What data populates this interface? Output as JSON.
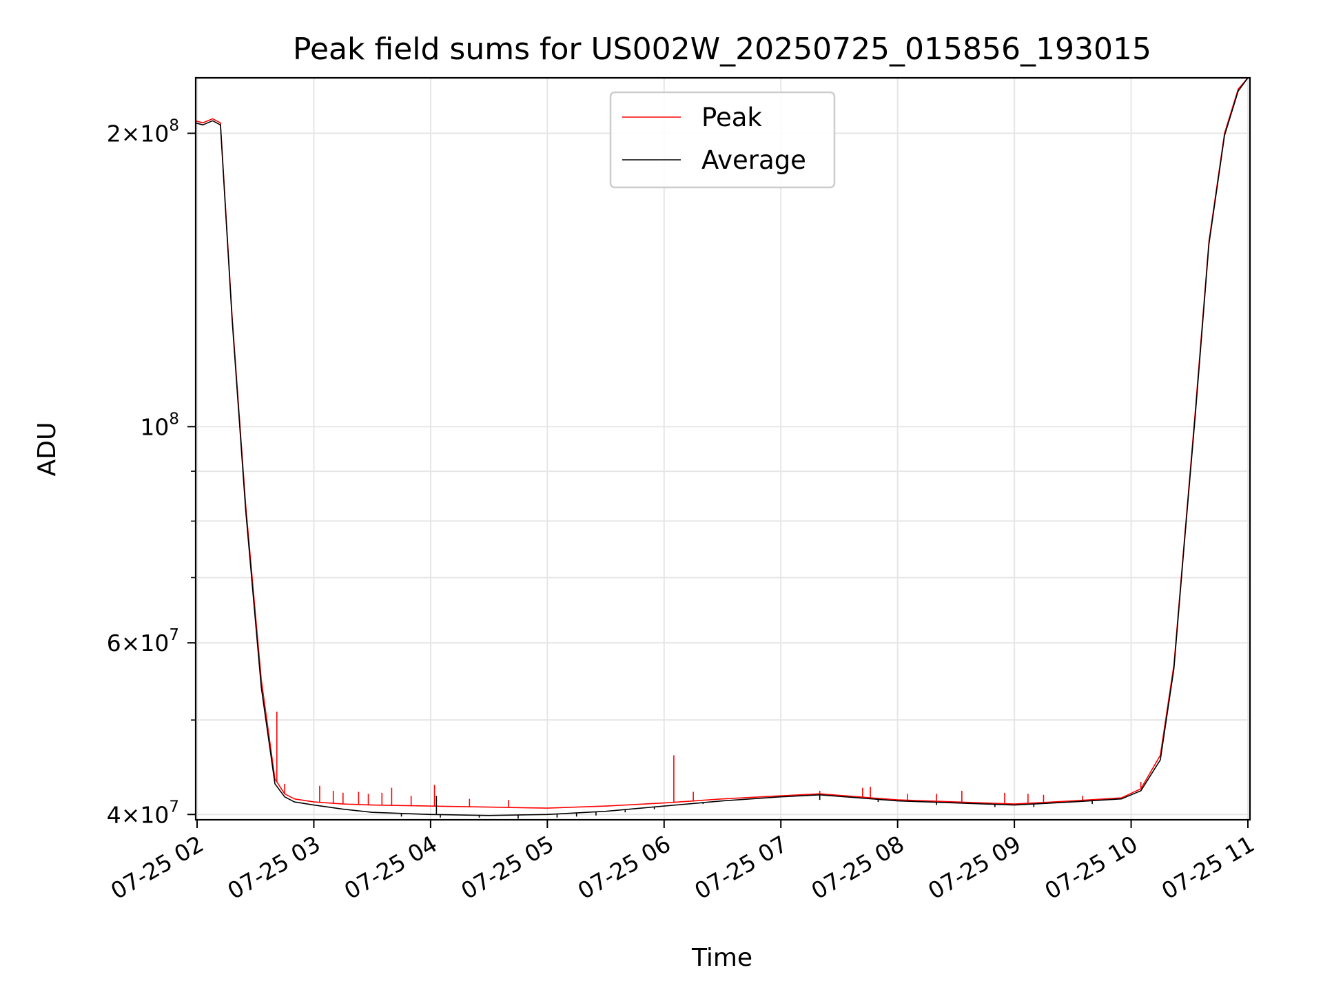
{
  "chart_data": {
    "type": "line",
    "title": "Peak field sums for US002W_20250725_015856_193015",
    "xlabel": "Time",
    "ylabel": "ADU",
    "yscale": "log",
    "ylim": [
      39500000,
      228000000
    ],
    "xlim": [
      "2025-07-25T02:00:00",
      "2025-07-25T11:00:00"
    ],
    "x_ticks": [
      {
        "value": "2025-07-25T02:00:00",
        "label": "07-25 02"
      },
      {
        "value": "2025-07-25T03:00:00",
        "label": "07-25 03"
      },
      {
        "value": "2025-07-25T04:00:00",
        "label": "07-25 04"
      },
      {
        "value": "2025-07-25T05:00:00",
        "label": "07-25 05"
      },
      {
        "value": "2025-07-25T06:00:00",
        "label": "07-25 06"
      },
      {
        "value": "2025-07-25T07:00:00",
        "label": "07-25 07"
      },
      {
        "value": "2025-07-25T08:00:00",
        "label": "07-25 08"
      },
      {
        "value": "2025-07-25T09:00:00",
        "label": "07-25 09"
      },
      {
        "value": "2025-07-25T10:00:00",
        "label": "07-25 10"
      },
      {
        "value": "2025-07-25T11:00:00",
        "label": "07-25 11"
      }
    ],
    "y_major_ticks": [
      {
        "value": 40000000,
        "mantissa": "4",
        "exponent": "7"
      },
      {
        "value": 60000000,
        "mantissa": "6",
        "exponent": "7"
      },
      {
        "value": 100000000,
        "mantissa": "",
        "exponent": "8"
      },
      {
        "value": 200000000,
        "mantissa": "2",
        "exponent": "8"
      }
    ],
    "y_minor_ticks": [
      50000000,
      70000000,
      80000000,
      90000000
    ],
    "grid": true,
    "legend_position": "top-center",
    "series": [
      {
        "name": "Peak",
        "color": "#ff0000",
        "x": [
          "2025-07-25T01:59:00",
          "2025-07-25T02:03:00",
          "2025-07-25T02:08:00",
          "2025-07-25T02:12:00",
          "2025-07-25T02:18:00",
          "2025-07-25T02:25:00",
          "2025-07-25T02:33:00",
          "2025-07-25T02:40:00",
          "2025-07-25T02:45:00",
          "2025-07-25T02:50:00",
          "2025-07-25T03:00:00",
          "2025-07-25T03:15:00",
          "2025-07-25T03:30:00",
          "2025-07-25T04:00:00",
          "2025-07-25T04:30:00",
          "2025-07-25T05:00:00",
          "2025-07-25T05:30:00",
          "2025-07-25T06:00:00",
          "2025-07-25T06:30:00",
          "2025-07-25T07:00:00",
          "2025-07-25T07:20:00",
          "2025-07-25T07:40:00",
          "2025-07-25T08:00:00",
          "2025-07-25T08:30:00",
          "2025-07-25T09:00:00",
          "2025-07-25T09:30:00",
          "2025-07-25T09:55:00",
          "2025-07-25T10:05:00",
          "2025-07-25T10:15:00",
          "2025-07-25T10:22:00",
          "2025-07-25T10:27:00",
          "2025-07-25T10:33:00",
          "2025-07-25T10:40:00",
          "2025-07-25T10:48:00",
          "2025-07-25T10:55:00",
          "2025-07-25T11:00:00"
        ],
        "y": [
          206000000,
          205000000,
          207000000,
          205000000,
          130000000,
          83000000,
          55000000,
          43500000,
          42000000,
          41500000,
          41200000,
          41000000,
          40900000,
          40800000,
          40700000,
          40600000,
          40800000,
          41100000,
          41500000,
          41800000,
          42000000,
          41700000,
          41400000,
          41200000,
          41000000,
          41300000,
          41600000,
          42500000,
          46000000,
          57000000,
          75000000,
          104000000,
          155000000,
          200000000,
          222000000,
          228000000
        ],
        "spikes": [
          {
            "x": "2025-07-25T02:41:00",
            "y": 51000000
          },
          {
            "x": "2025-07-25T02:45:00",
            "y": 43000000
          },
          {
            "x": "2025-07-25T03:03:00",
            "y": 42800000
          },
          {
            "x": "2025-07-25T03:10:00",
            "y": 42300000
          },
          {
            "x": "2025-07-25T03:15:00",
            "y": 42100000
          },
          {
            "x": "2025-07-25T03:23:00",
            "y": 42200000
          },
          {
            "x": "2025-07-25T03:28:00",
            "y": 42000000
          },
          {
            "x": "2025-07-25T03:35:00",
            "y": 42100000
          },
          {
            "x": "2025-07-25T03:40:00",
            "y": 42600000
          },
          {
            "x": "2025-07-25T03:50:00",
            "y": 41800000
          },
          {
            "x": "2025-07-25T04:02:00",
            "y": 42900000
          },
          {
            "x": "2025-07-25T04:20:00",
            "y": 41500000
          },
          {
            "x": "2025-07-25T04:40:00",
            "y": 41400000
          },
          {
            "x": "2025-07-25T06:05:00",
            "y": 46000000
          },
          {
            "x": "2025-07-25T06:15:00",
            "y": 42200000
          },
          {
            "x": "2025-07-25T07:20:00",
            "y": 42300000
          },
          {
            "x": "2025-07-25T07:42:00",
            "y": 42600000
          },
          {
            "x": "2025-07-25T07:46:00",
            "y": 42700000
          },
          {
            "x": "2025-07-25T08:05:00",
            "y": 42000000
          },
          {
            "x": "2025-07-25T08:20:00",
            "y": 42000000
          },
          {
            "x": "2025-07-25T08:33:00",
            "y": 42300000
          },
          {
            "x": "2025-07-25T08:55:00",
            "y": 42100000
          },
          {
            "x": "2025-07-25T09:07:00",
            "y": 42000000
          },
          {
            "x": "2025-07-25T09:15:00",
            "y": 41900000
          },
          {
            "x": "2025-07-25T09:35:00",
            "y": 41800000
          },
          {
            "x": "2025-07-25T10:05:00",
            "y": 43200000
          },
          {
            "x": "2025-07-25T10:12:00",
            "y": 45000000
          }
        ]
      },
      {
        "name": "Average",
        "color": "#000000",
        "x": [
          "2025-07-25T01:59:00",
          "2025-07-25T02:03:00",
          "2025-07-25T02:08:00",
          "2025-07-25T02:12:00",
          "2025-07-25T02:18:00",
          "2025-07-25T02:25:00",
          "2025-07-25T02:33:00",
          "2025-07-25T02:40:00",
          "2025-07-25T02:45:00",
          "2025-07-25T02:50:00",
          "2025-07-25T03:00:00",
          "2025-07-25T03:15:00",
          "2025-07-25T03:30:00",
          "2025-07-25T04:00:00",
          "2025-07-25T04:30:00",
          "2025-07-25T05:00:00",
          "2025-07-25T05:30:00",
          "2025-07-25T06:00:00",
          "2025-07-25T06:30:00",
          "2025-07-25T07:00:00",
          "2025-07-25T07:20:00",
          "2025-07-25T07:40:00",
          "2025-07-25T08:00:00",
          "2025-07-25T08:30:00",
          "2025-07-25T09:00:00",
          "2025-07-25T09:30:00",
          "2025-07-25T09:55:00",
          "2025-07-25T10:05:00",
          "2025-07-25T10:15:00",
          "2025-07-25T10:22:00",
          "2025-07-25T10:27:00",
          "2025-07-25T10:33:00",
          "2025-07-25T10:40:00",
          "2025-07-25T10:48:00",
          "2025-07-25T10:55:00",
          "2025-07-25T11:00:00"
        ],
        "y": [
          205000000,
          204000000,
          206000000,
          204000000,
          129000000,
          82000000,
          54000000,
          43000000,
          41700000,
          41200000,
          40900000,
          40500000,
          40200000,
          40000000,
          39900000,
          40000000,
          40300000,
          40800000,
          41300000,
          41700000,
          41900000,
          41600000,
          41300000,
          41100000,
          40900000,
          41200000,
          41500000,
          42300000,
          45500000,
          56500000,
          74500000,
          103000000,
          154000000,
          199000000,
          221000000,
          228000000
        ],
        "dips": [
          {
            "x": "2025-07-25T03:45:00",
            "y": 39800000
          },
          {
            "x": "2025-07-25T04:05:00",
            "y": 39700000
          },
          {
            "x": "2025-07-25T04:25:00",
            "y": 39700000
          },
          {
            "x": "2025-07-25T04:45:00",
            "y": 39600000
          },
          {
            "x": "2025-07-25T05:05:00",
            "y": 39700000
          },
          {
            "x": "2025-07-25T05:15:00",
            "y": 39800000
          },
          {
            "x": "2025-07-25T05:25:00",
            "y": 39900000
          },
          {
            "x": "2025-07-25T05:40:00",
            "y": 40200000
          },
          {
            "x": "2025-07-25T05:55:00",
            "y": 40500000
          },
          {
            "x": "2025-07-25T06:20:00",
            "y": 41000000
          },
          {
            "x": "2025-07-25T07:20:00",
            "y": 41400000
          },
          {
            "x": "2025-07-25T07:50:00",
            "y": 41200000
          },
          {
            "x": "2025-07-25T08:20:00",
            "y": 40900000
          },
          {
            "x": "2025-07-25T08:50:00",
            "y": 40700000
          },
          {
            "x": "2025-07-25T09:10:00",
            "y": 40700000
          },
          {
            "x": "2025-07-25T09:40:00",
            "y": 41000000
          }
        ],
        "upward": [
          {
            "x": "2025-07-25T04:03:00",
            "y": 41800000
          }
        ]
      }
    ]
  }
}
